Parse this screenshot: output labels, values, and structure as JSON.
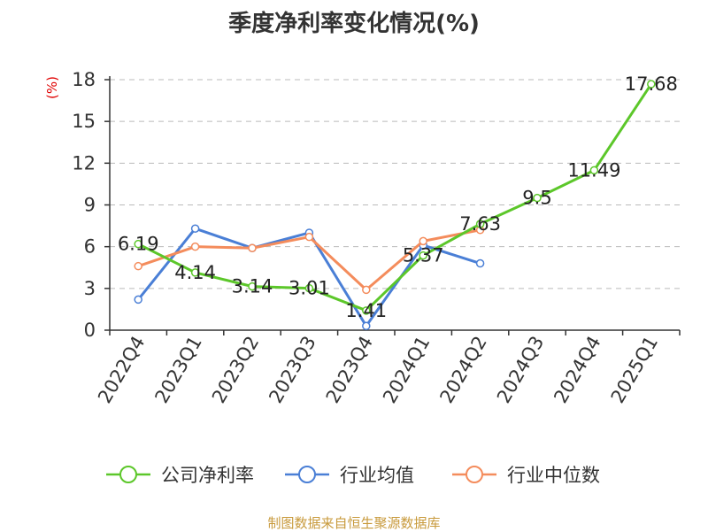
{
  "chart_data": {
    "type": "line",
    "title": "季度净利率变化情况(%)",
    "ylabel": "(%)",
    "xlabel": "",
    "categories": [
      "2022Q4",
      "2023Q1",
      "2023Q2",
      "2023Q3",
      "2023Q4",
      "2024Q1",
      "2024Q2",
      "2024Q3",
      "2024Q4",
      "2025Q1"
    ],
    "ylim": [
      0,
      18
    ],
    "yticks": [
      0,
      3,
      6,
      9,
      12,
      15,
      18
    ],
    "grid": true,
    "legend_position": "bottom",
    "series": [
      {
        "name": "公司净利率",
        "color": "#5cc72a",
        "values": [
          6.19,
          4.14,
          3.14,
          3.01,
          1.41,
          5.37,
          7.63,
          9.5,
          11.49,
          17.68
        ],
        "labels": [
          "6.19",
          "4.14",
          "3.14",
          "3.01",
          "1.41",
          "5.37",
          "7.63",
          "9.5",
          "11.49",
          "17.68"
        ]
      },
      {
        "name": "行业均值",
        "color": "#4a7fd6",
        "values": [
          2.2,
          7.3,
          5.9,
          7.0,
          0.3,
          6.1,
          4.8,
          null,
          null,
          null
        ]
      },
      {
        "name": "行业中位数",
        "color": "#f48c5c",
        "values": [
          4.6,
          6.0,
          5.9,
          6.7,
          2.9,
          6.4,
          7.2,
          null,
          null,
          null
        ]
      }
    ]
  },
  "source": "制图数据来自恒生聚源数据库"
}
